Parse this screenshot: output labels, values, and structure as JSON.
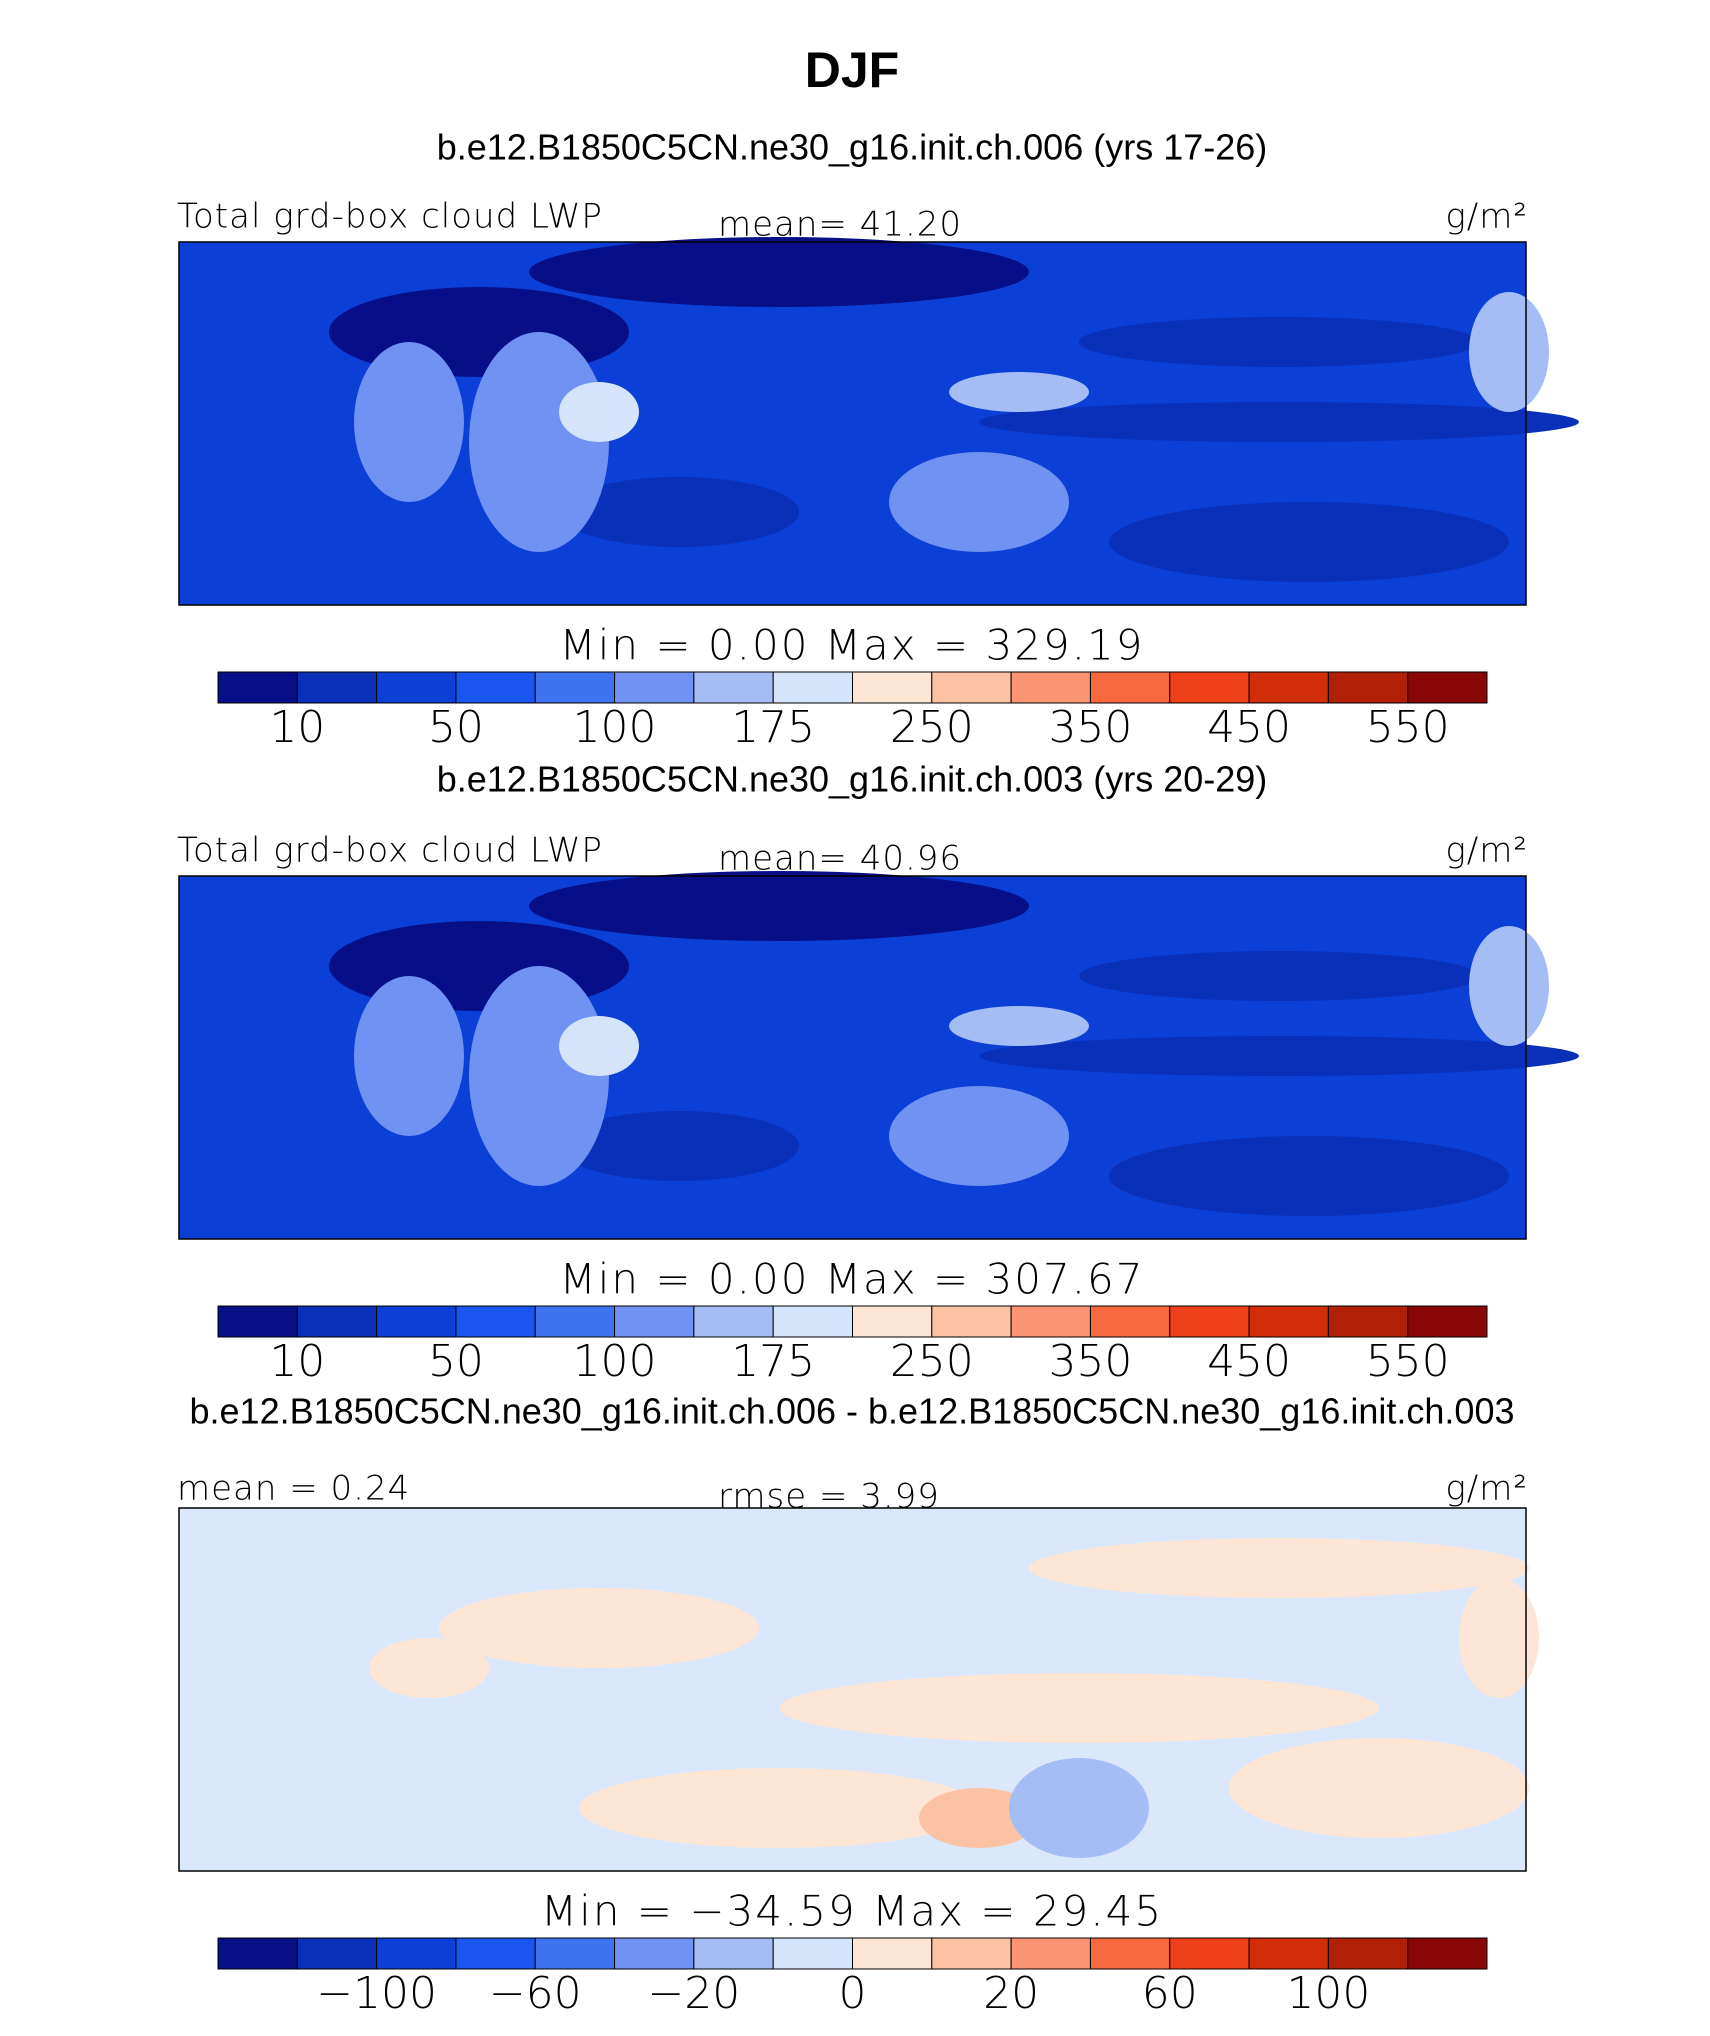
{
  "title": "DJF",
  "colors": [
    "#060f87",
    "#0a2fb8",
    "#0b3fd6",
    "#1a55f0",
    "#3f74f0",
    "#7092f2",
    "#a4bdf5",
    "#d4e4fa",
    "#fde6d6",
    "#fcc2a4",
    "#fa9473",
    "#f8683f",
    "#f0401a",
    "#d02d08",
    "#b01f06",
    "#880606"
  ],
  "panels": [
    {
      "subtitle": "b.e12.B1850C5CN.ne30_g16.init.ch.006 (yrs 17-26)",
      "left": "Total grd-box cloud LWP",
      "center": "mean=  41.20",
      "units": "g/m²",
      "minmax": "Min =    0.00  Max = 329.19",
      "colorbar": [
        {
          "boundary": 1,
          "label": "10"
        },
        {
          "boundary": 3,
          "label": "50"
        },
        {
          "boundary": 5,
          "label": "100"
        },
        {
          "boundary": 7,
          "label": "175"
        },
        {
          "boundary": 9,
          "label": "250"
        },
        {
          "boundary": 11,
          "label": "350"
        },
        {
          "boundary": 13,
          "label": "450"
        },
        {
          "boundary": 15,
          "label": "550"
        }
      ]
    },
    {
      "subtitle": "b.e12.B1850C5CN.ne30_g16.init.ch.003 (yrs 20-29)",
      "left": "Total grd-box cloud LWP",
      "center": "mean=  40.96",
      "units": "g/m²",
      "minmax": "Min =    0.00  Max = 307.67",
      "colorbar": [
        {
          "boundary": 1,
          "label": "10"
        },
        {
          "boundary": 3,
          "label": "50"
        },
        {
          "boundary": 5,
          "label": "100"
        },
        {
          "boundary": 7,
          "label": "175"
        },
        {
          "boundary": 9,
          "label": "250"
        },
        {
          "boundary": 11,
          "label": "350"
        },
        {
          "boundary": 13,
          "label": "450"
        },
        {
          "boundary": 15,
          "label": "550"
        }
      ]
    },
    {
      "subtitle": "b.e12.B1850C5CN.ne30_g16.init.ch.006 - b.e12.B1850C5CN.ne30_g16.init.ch.003",
      "left": "mean =    0.24",
      "center": "rmse =    3.99",
      "units": "g/m²",
      "minmax": "Min = −34.59  Max =   29.45",
      "colorbar": [
        {
          "boundary": 2,
          "label": "−100"
        },
        {
          "boundary": 4,
          "label": "−60"
        },
        {
          "boundary": 6,
          "label": "−20"
        },
        {
          "boundary": 8,
          "label": "0"
        },
        {
          "boundary": 10,
          "label": "20"
        },
        {
          "boundary": 12,
          "label": "60"
        },
        {
          "boundary": 14,
          "label": "100"
        }
      ]
    }
  ]
}
